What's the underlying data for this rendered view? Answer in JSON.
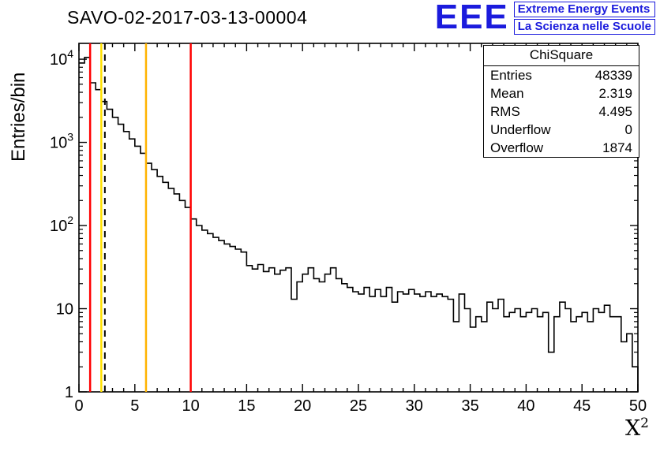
{
  "title": "SAVO-02-2017-03-13-00004",
  "logo": {
    "text": "EEE",
    "line1": "Extreme Energy Events",
    "line2": "La Scienza nelle Scuole",
    "color": "#1b1bdd"
  },
  "stats": {
    "title": "ChiSquare",
    "rows": [
      {
        "label": "Entries",
        "value": "48339"
      },
      {
        "label": "Mean",
        "value": "2.319"
      },
      {
        "label": "RMS",
        "value": "4.495"
      },
      {
        "label": "Underflow",
        "value": "0"
      },
      {
        "label": "Overflow",
        "value": "1874"
      }
    ]
  },
  "axes": {
    "ylabel": "Entries/bin",
    "xlabel_base": "X",
    "xlabel_exp": "2",
    "x_ticks": [
      0,
      5,
      10,
      15,
      20,
      25,
      30,
      35,
      40,
      45,
      50
    ],
    "y_ticks": [
      {
        "t": "1",
        "e": ""
      },
      {
        "t": "10",
        "e": ""
      },
      {
        "t": "10",
        "e": "2"
      },
      {
        "t": "10",
        "e": "3"
      },
      {
        "t": "10",
        "e": "4"
      }
    ]
  },
  "chart_data": {
    "type": "bar",
    "subtype": "step-histogram",
    "title": "SAVO-02-2017-03-13-00004",
    "xlabel": "X^2",
    "ylabel": "Entries/bin",
    "ylog": true,
    "grid": false,
    "xlim": [
      0,
      50
    ],
    "ylim": [
      1,
      15500
    ],
    "x_start": 0,
    "bin_width": 0.5,
    "values": [
      9000,
      10500,
      5200,
      4300,
      3100,
      2500,
      2000,
      1650,
      1350,
      1100,
      900,
      740,
      560,
      470,
      390,
      330,
      280,
      240,
      200,
      165,
      120,
      100,
      88,
      80,
      72,
      66,
      60,
      56,
      52,
      48,
      33,
      30,
      34,
      28,
      31,
      26,
      29,
      31,
      13,
      21,
      26,
      31,
      23,
      21,
      26,
      31,
      23,
      20,
      18,
      16,
      15,
      18,
      14,
      17,
      14,
      18,
      12,
      16,
      15,
      17,
      15,
      14,
      16,
      14,
      15,
      14,
      13,
      7,
      15,
      10,
      6,
      8,
      7,
      12,
      10,
      13,
      8,
      9,
      10,
      8,
      9,
      10,
      8,
      9,
      3,
      8,
      12,
      10,
      7,
      8,
      9,
      7,
      10,
      9,
      11,
      8,
      8,
      4,
      5,
      2
    ],
    "line_color": "#000000",
    "vlines": [
      {
        "x": 1.0,
        "color": "#ff0000",
        "style": "solid",
        "w": 2.5
      },
      {
        "x": 2.0,
        "color": "#ffe000",
        "style": "solid",
        "w": 2.5
      },
      {
        "x": 2.319,
        "color": "#000000",
        "style": "dashed",
        "w": 2
      },
      {
        "x": 6.0,
        "color": "#ffb300",
        "style": "solid",
        "w": 2.5
      },
      {
        "x": 10.0,
        "color": "#ff0000",
        "style": "solid",
        "w": 2.5
      }
    ],
    "stats_box": {
      "title": "ChiSquare",
      "entries": 48339,
      "mean": 2.319,
      "rms": 4.495,
      "underflow": 0,
      "overflow": 1874
    }
  }
}
